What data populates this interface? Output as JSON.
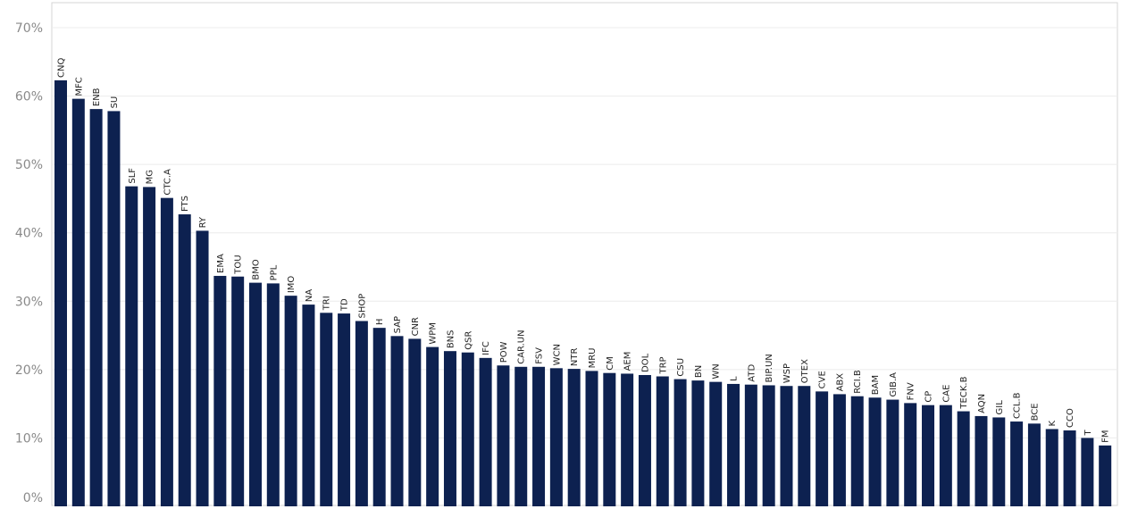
{
  "chart_data": {
    "type": "bar",
    "title": "",
    "xlabel": "",
    "ylabel": "",
    "ylim": [
      0,
      70
    ],
    "y_ticks": [
      "0%",
      "10%",
      "20%",
      "30%",
      "40%",
      "50%",
      "60%",
      "70%"
    ],
    "y_tick_values": [
      0,
      10,
      20,
      30,
      40,
      50,
      60,
      70
    ],
    "grid": "horizontal",
    "bar_color": "#0d2150",
    "categories": [
      "CNQ",
      "MFC",
      "ENB",
      "SU",
      "SLF",
      "MG",
      "CTC.A",
      "FTS",
      "RY",
      "EMA",
      "TOU",
      "BMO",
      "PPL",
      "IMO",
      "NA",
      "TRI",
      "TD",
      "SHOP",
      "H",
      "SAP",
      "CNR",
      "WPM",
      "BNS",
      "QSR",
      "IFC",
      "POW",
      "CAR.UN",
      "FSV",
      "WCN",
      "NTR",
      "MRU",
      "CM",
      "AEM",
      "DOL",
      "TRP",
      "CSU",
      "BN",
      "WN",
      "L",
      "ATD",
      "BIP.UN",
      "WSP",
      "OTEX",
      "CVE",
      "ABX",
      "RCI.B",
      "BAM",
      "GIB.A",
      "FNV",
      "CP",
      "CAE",
      "TECK.B",
      "AQN",
      "GIL",
      "CCL.B",
      "BCE",
      "K",
      "CCO",
      "T",
      "FM"
    ],
    "values": [
      62.3,
      59.6,
      58.1,
      57.8,
      46.8,
      46.7,
      45.1,
      42.7,
      40.3,
      33.7,
      33.6,
      32.7,
      32.6,
      30.8,
      29.5,
      28.3,
      28.2,
      27.1,
      26.1,
      24.9,
      24.5,
      23.3,
      22.7,
      22.5,
      21.7,
      20.6,
      20.4,
      20.4,
      20.2,
      20.1,
      19.8,
      19.5,
      19.4,
      19.2,
      19.0,
      18.6,
      18.4,
      18.2,
      17.9,
      17.8,
      17.7,
      17.6,
      17.6,
      16.8,
      16.4,
      16.1,
      15.9,
      15.6,
      15.1,
      14.8,
      14.8,
      13.9,
      13.2,
      13.0,
      12.4,
      12.1,
      11.3,
      11.1,
      10.0,
      8.9
    ]
  }
}
